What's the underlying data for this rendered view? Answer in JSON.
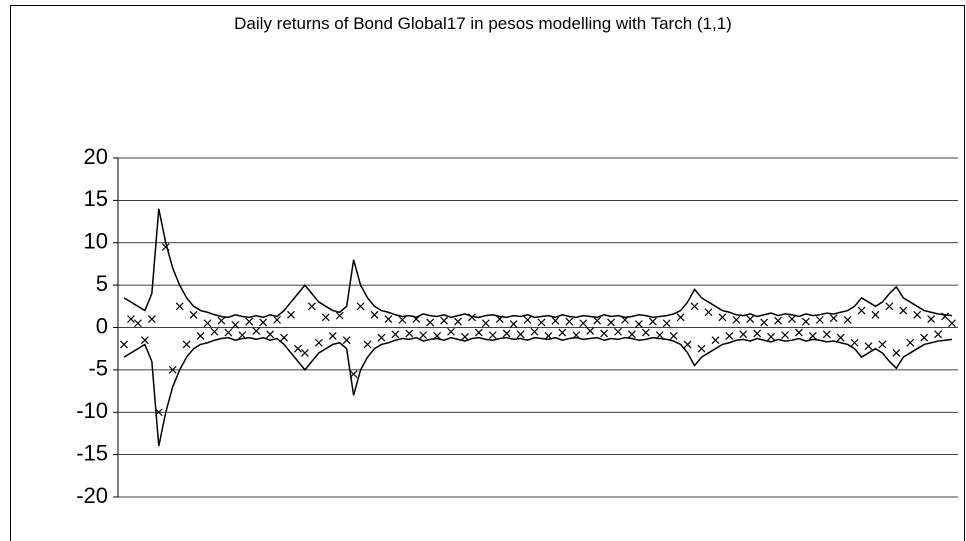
{
  "chart_data": {
    "type": "line",
    "title": "Daily returns of Bond Global17 in pesos modelling with Tarch (1,1)",
    "ylim": [
      -20,
      20
    ],
    "yticks": [
      -20,
      -15,
      -10,
      -5,
      0,
      5,
      10,
      15,
      20
    ],
    "grid": true,
    "series": [
      {
        "color": "#000000",
        "marker": "x",
        "values": [
          -2,
          1,
          0.5,
          -1.5,
          1,
          -10,
          9.5,
          -5,
          2.5,
          -2,
          1.5,
          -1,
          0.5,
          -0.5,
          0.8,
          -0.6,
          0.3,
          -0.9,
          0.7,
          -0.4,
          0.6,
          -0.8,
          0.9,
          -1.2,
          1.5,
          -2.5,
          -3,
          2.5,
          -1.8,
          1.2,
          -1,
          1.4,
          -1.5,
          -5.5,
          2.5,
          -2,
          1.5,
          -1.2,
          1,
          -0.8,
          0.9,
          -0.7,
          1,
          -0.9,
          0.6,
          -1,
          0.8,
          -0.5,
          0.7,
          -1.1,
          1.2,
          -0.6,
          0.5,
          -0.9,
          1,
          -0.7,
          0.4,
          -0.8,
          0.9,
          -0.5,
          0.6,
          -1,
          0.8,
          -0.6,
          0.7,
          -0.9,
          0.5,
          -0.4,
          0.8,
          -0.7,
          0.6,
          -0.5,
          0.9,
          -0.8,
          0.4,
          -0.6,
          0.7,
          -0.9,
          0.5,
          -1,
          1.2,
          -2,
          2.5,
          -2.5,
          1.8,
          -1.5,
          1.2,
          -1,
          0.9,
          -0.8,
          1,
          -0.7,
          0.6,
          -1.1,
          0.8,
          -0.9,
          1,
          -0.6,
          0.7,
          -1,
          0.9,
          -0.8,
          1.1,
          -1.2,
          0.9,
          -1.8,
          2,
          -2.2,
          1.5,
          -2,
          2.5,
          -3,
          2,
          -1.8,
          1.5,
          -1.2,
          1,
          -0.8,
          1.3,
          0.5
        ]
      },
      {
        "color": "#000000",
        "values": [
          3.5,
          3,
          2.5,
          2,
          4,
          14,
          10,
          7,
          5,
          3.5,
          2.5,
          2,
          1.8,
          1.5,
          1.3,
          1.2,
          1.5,
          1.3,
          1.2,
          1.4,
          1.2,
          1.5,
          1.3,
          2,
          3,
          4,
          5,
          4,
          3,
          2.5,
          2,
          1.8,
          2.5,
          8,
          5,
          3.5,
          2.5,
          2,
          1.8,
          1.5,
          1.3,
          1.4,
          1.2,
          1.6,
          1.4,
          1.3,
          1.5,
          1.2,
          1.4,
          1.6,
          1.3,
          1.2,
          1.4,
          1.5,
          1.3,
          1.2,
          1.4,
          1.3,
          1.5,
          1.2,
          1.3,
          1.4,
          1.2,
          1.5,
          1.3,
          1.2,
          1.4,
          1.3,
          1.2,
          1.5,
          1.3,
          1.4,
          1.2,
          1.3,
          1.5,
          1.4,
          1.2,
          1.3,
          1.4,
          1.6,
          2,
          3,
          4.5,
          3.5,
          3,
          2.5,
          2,
          1.8,
          1.5,
          1.4,
          1.6,
          1.3,
          1.5,
          1.7,
          1.4,
          1.6,
          1.5,
          1.3,
          1.6,
          1.4,
          1.5,
          1.7,
          1.6,
          1.8,
          2,
          2.5,
          3.5,
          3,
          2.5,
          3,
          4,
          4.8,
          3.5,
          3,
          2.5,
          2,
          1.8,
          1.6,
          1.5,
          1.4
        ]
      },
      {
        "color": "#000000",
        "values": [
          -3.5,
          -3,
          -2.5,
          -2,
          -4,
          -14,
          -10,
          -7,
          -5,
          -3.5,
          -2.5,
          -2,
          -1.8,
          -1.5,
          -1.3,
          -1.2,
          -1.5,
          -1.3,
          -1.2,
          -1.4,
          -1.2,
          -1.5,
          -1.3,
          -2,
          -3,
          -4,
          -5,
          -4,
          -3,
          -2.5,
          -2,
          -1.8,
          -2.5,
          -8,
          -5,
          -3.5,
          -2.5,
          -2,
          -1.8,
          -1.5,
          -1.3,
          -1.4,
          -1.2,
          -1.6,
          -1.4,
          -1.3,
          -1.5,
          -1.2,
          -1.4,
          -1.6,
          -1.3,
          -1.2,
          -1.4,
          -1.5,
          -1.3,
          -1.2,
          -1.4,
          -1.3,
          -1.5,
          -1.2,
          -1.3,
          -1.4,
          -1.2,
          -1.5,
          -1.3,
          -1.2,
          -1.4,
          -1.3,
          -1.2,
          -1.5,
          -1.3,
          -1.4,
          -1.2,
          -1.3,
          -1.5,
          -1.4,
          -1.2,
          -1.3,
          -1.4,
          -1.6,
          -2,
          -3,
          -4.5,
          -3.5,
          -3,
          -2.5,
          -2,
          -1.8,
          -1.5,
          -1.4,
          -1.6,
          -1.3,
          -1.5,
          -1.7,
          -1.4,
          -1.6,
          -1.5,
          -1.3,
          -1.6,
          -1.4,
          -1.5,
          -1.7,
          -1.6,
          -1.8,
          -2,
          -2.5,
          -3.5,
          -3,
          -2.5,
          -3,
          -4,
          -4.8,
          -3.5,
          -3,
          -2.5,
          -2,
          -1.8,
          -1.6,
          -1.5,
          -1.4
        ]
      }
    ]
  }
}
